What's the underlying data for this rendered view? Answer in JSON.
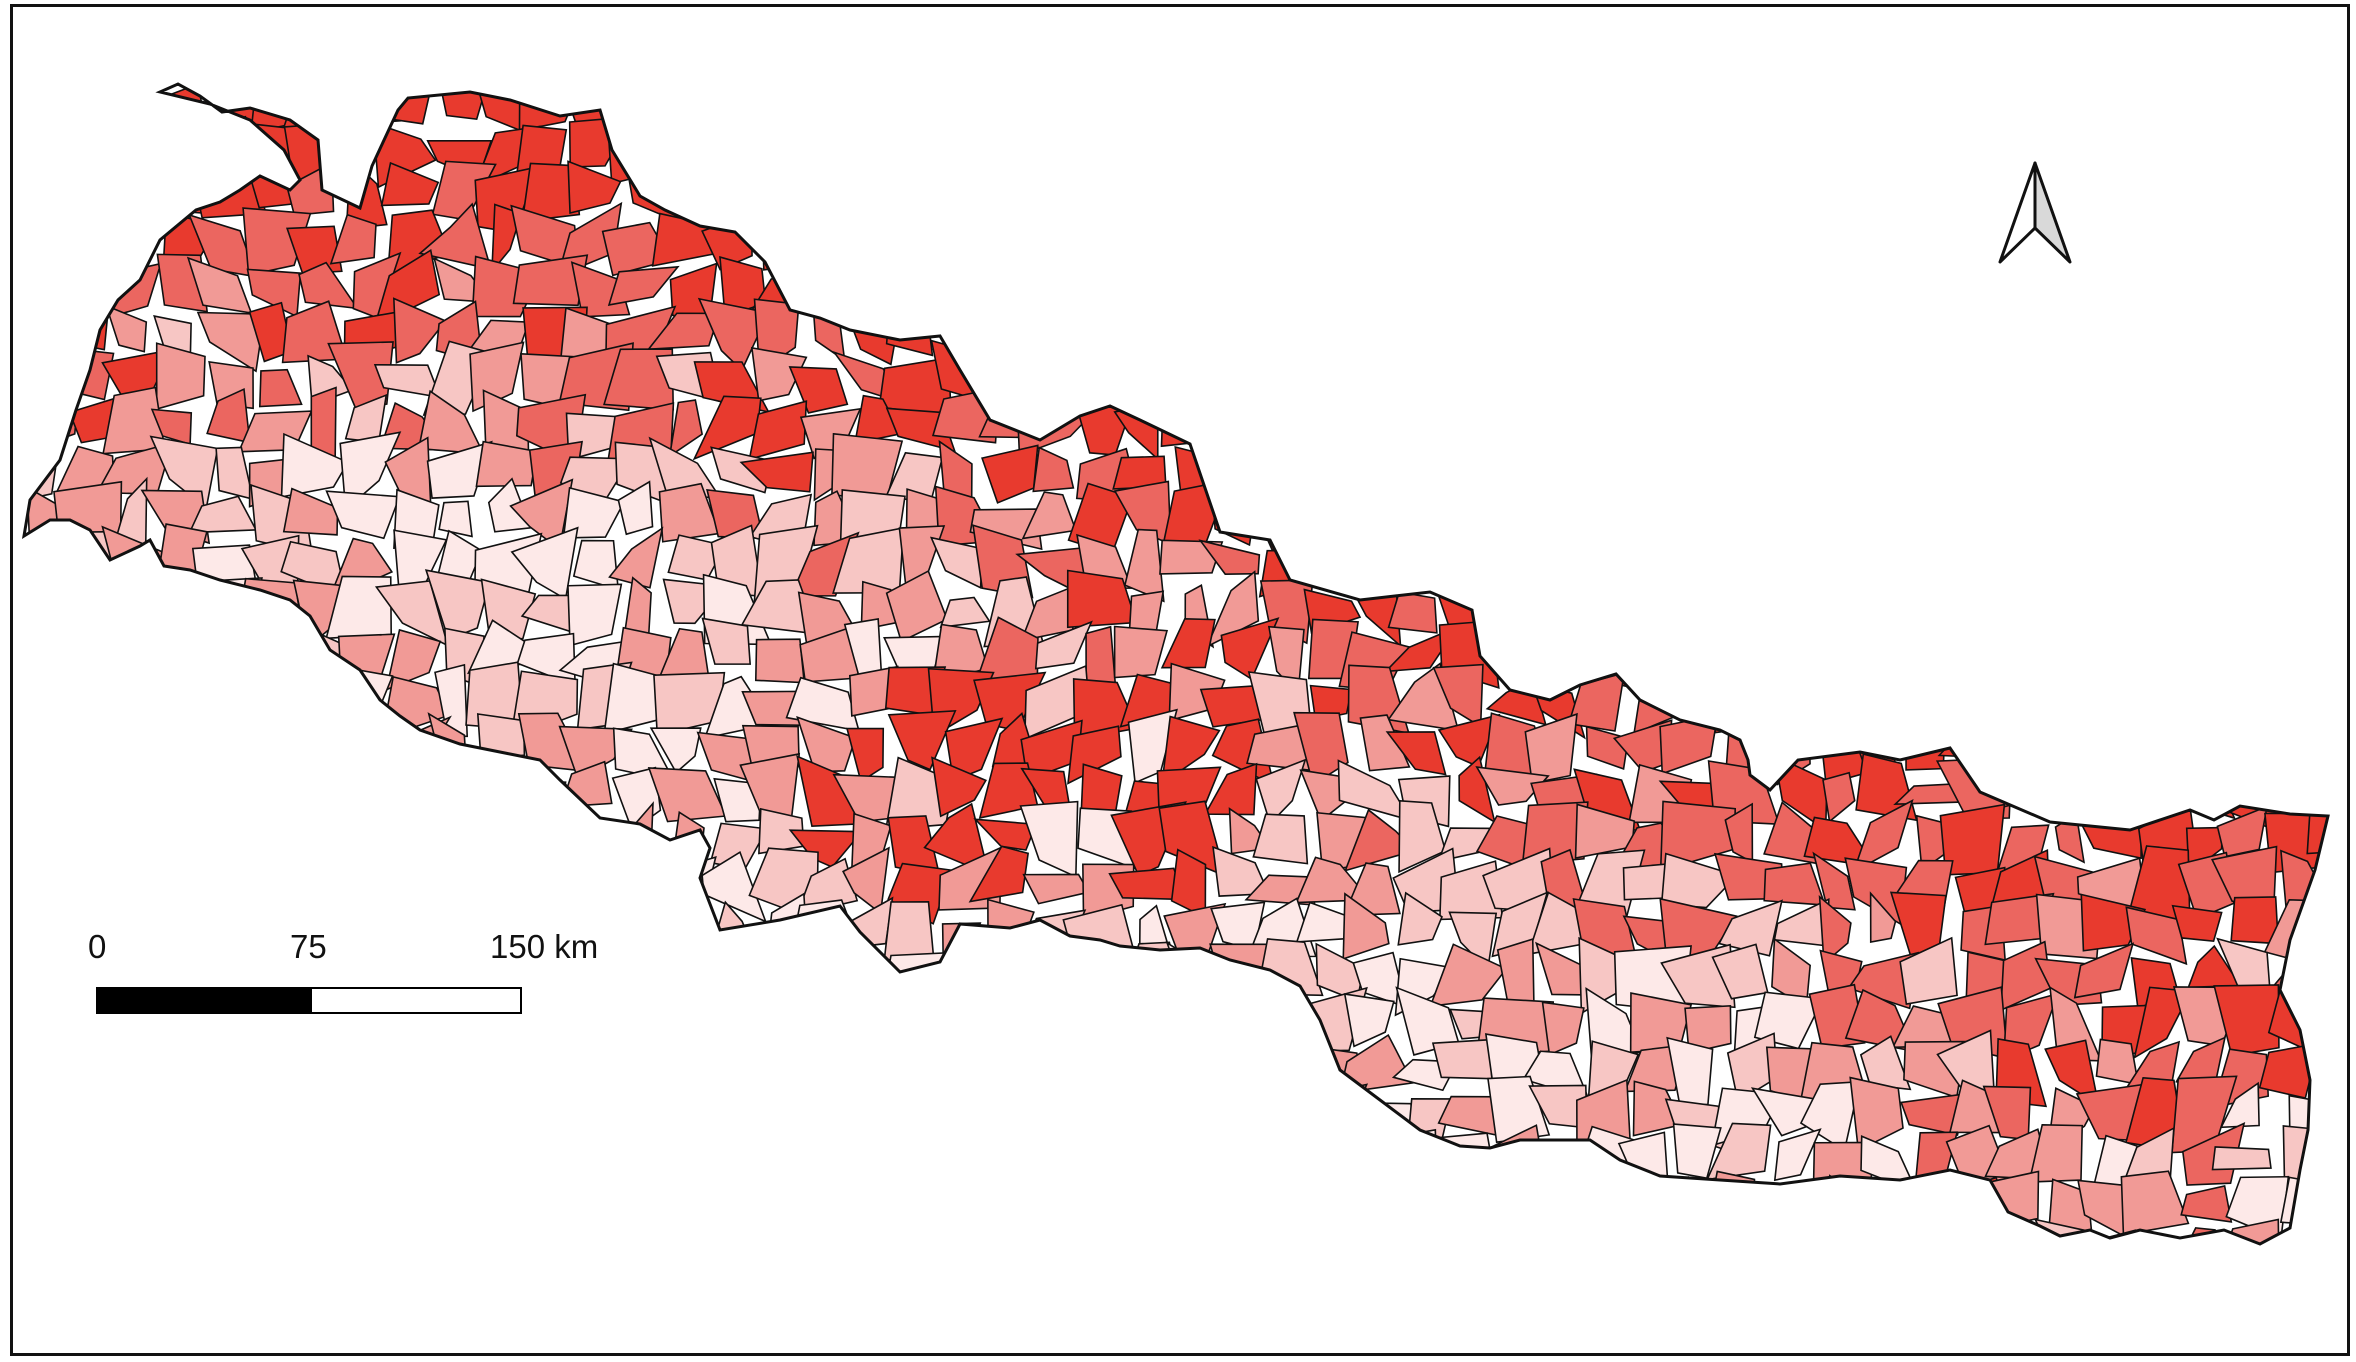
{
  "map": {
    "legend_colors": [
      "#fde9e8",
      "#f7c6c4",
      "#f19a96",
      "#eb6660",
      "#e83a2e"
    ],
    "outline_color": "#111111"
  },
  "scale_bar": {
    "labels": [
      "0",
      "75",
      "150 km"
    ]
  },
  "north_arrow": {
    "icon": "north-arrow-icon"
  }
}
